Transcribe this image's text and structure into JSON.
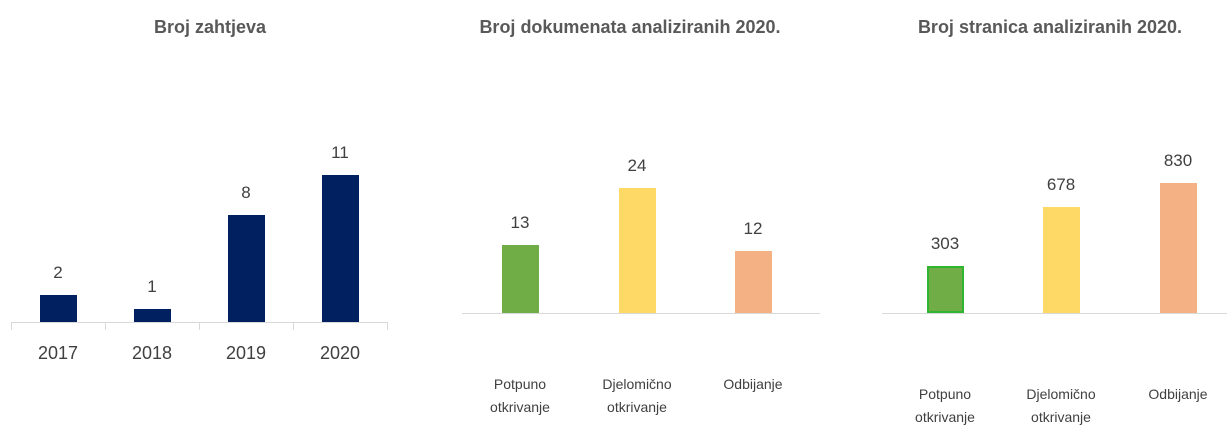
{
  "chart_data": [
    {
      "type": "bar",
      "title": "Broj zahtjeva",
      "categories": [
        "2017",
        "2018",
        "2019",
        "2020"
      ],
      "values": [
        2,
        1,
        8,
        11
      ],
      "color": "#002060"
    },
    {
      "type": "bar",
      "title": "Broj dokumenata analiziranih 2020.",
      "categories": [
        "Potpuno otkrivanje",
        "Djelomično otkrivanje",
        "Odbijanje"
      ],
      "values": [
        13,
        24,
        12
      ],
      "colors": [
        "#70ad47",
        "#ffd966",
        "#f4b183"
      ]
    },
    {
      "type": "bar",
      "title": "Broj stranica analiziranih 2020.",
      "categories": [
        "Potpuno otkrivanje",
        "Djelomično otkrivanje",
        "Odbijanje"
      ],
      "values": [
        303,
        678,
        830
      ],
      "colors": [
        "#70ad47",
        "#ffd966",
        "#f4b183"
      ]
    }
  ]
}
